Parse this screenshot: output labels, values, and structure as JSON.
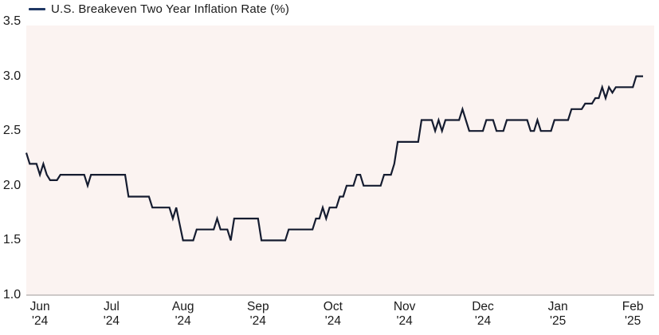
{
  "legend": {
    "label": "U.S. Breakeven Two Year Inflation Rate (%)",
    "dash_color": "#1f3864"
  },
  "colors": {
    "plot_background": "#fbf3f1",
    "line": "#151c30",
    "axis_line": "#bdbab9",
    "text": "#1a1a1a",
    "page_background": "#ffffff"
  },
  "chart_data": {
    "type": "line",
    "title": "U.S. Breakeven Two Year Inflation Rate (%)",
    "xlabel": "",
    "ylabel": "",
    "ylim": [
      1.0,
      3.5
    ],
    "grid": false,
    "legend_position": "top-left",
    "y_ticks": [
      "3.5",
      "3.0",
      "2.5",
      "2.0",
      "1.5",
      "1.0"
    ],
    "y_tick_values": [
      3.5,
      3.0,
      2.5,
      2.0,
      1.5,
      1.0
    ],
    "x_ticks": [
      {
        "month": "Jun",
        "year": "'24",
        "day_index": 4
      },
      {
        "month": "Jul",
        "year": "'24",
        "day_index": 25
      },
      {
        "month": "Aug",
        "year": "'24",
        "day_index": 46
      },
      {
        "month": "Sep",
        "year": "'24",
        "day_index": 68
      },
      {
        "month": "Oct",
        "year": "'24",
        "day_index": 90
      },
      {
        "month": "Nov",
        "year": "'24",
        "day_index": 111
      },
      {
        "month": "Dec",
        "year": "'24",
        "day_index": 134
      },
      {
        "month": "Jan",
        "year": "'25",
        "day_index": 156
      },
      {
        "month": "Feb",
        "year": "'25",
        "day_index": 178
      }
    ],
    "series": [
      {
        "name": "U.S. Breakeven Two Year Inflation Rate (%)",
        "frequency": "daily (business days)",
        "values": [
          2.3,
          2.2,
          2.2,
          2.2,
          2.1,
          2.2,
          2.1,
          2.05,
          2.05,
          2.05,
          2.1,
          2.1,
          2.1,
          2.1,
          2.1,
          2.1,
          2.1,
          2.1,
          2.0,
          2.1,
          2.1,
          2.1,
          2.1,
          2.1,
          2.1,
          2.1,
          2.1,
          2.1,
          2.1,
          2.1,
          1.9,
          1.9,
          1.9,
          1.9,
          1.9,
          1.9,
          1.9,
          1.8,
          1.8,
          1.8,
          1.8,
          1.8,
          1.8,
          1.7,
          1.8,
          1.65,
          1.5,
          1.5,
          1.5,
          1.5,
          1.6,
          1.6,
          1.6,
          1.6,
          1.6,
          1.6,
          1.7,
          1.6,
          1.6,
          1.6,
          1.5,
          1.7,
          1.7,
          1.7,
          1.7,
          1.7,
          1.7,
          1.7,
          1.7,
          1.5,
          1.5,
          1.5,
          1.5,
          1.5,
          1.5,
          1.5,
          1.5,
          1.6,
          1.6,
          1.6,
          1.6,
          1.6,
          1.6,
          1.6,
          1.6,
          1.7,
          1.7,
          1.8,
          1.7,
          1.8,
          1.8,
          1.8,
          1.9,
          1.9,
          2.0,
          2.0,
          2.0,
          2.1,
          2.1,
          2.0,
          2.0,
          2.0,
          2.0,
          2.0,
          2.0,
          2.1,
          2.1,
          2.1,
          2.2,
          2.4,
          2.4,
          2.4,
          2.4,
          2.4,
          2.4,
          2.4,
          2.6,
          2.6,
          2.6,
          2.6,
          2.5,
          2.6,
          2.5,
          2.6,
          2.6,
          2.6,
          2.6,
          2.6,
          2.7,
          2.6,
          2.5,
          2.5,
          2.5,
          2.5,
          2.5,
          2.6,
          2.6,
          2.6,
          2.5,
          2.5,
          2.5,
          2.6,
          2.6,
          2.6,
          2.6,
          2.6,
          2.6,
          2.6,
          2.5,
          2.5,
          2.6,
          2.5,
          2.5,
          2.5,
          2.5,
          2.6,
          2.6,
          2.6,
          2.6,
          2.6,
          2.7,
          2.7,
          2.7,
          2.7,
          2.75,
          2.75,
          2.75,
          2.8,
          2.8,
          2.9,
          2.8,
          2.9,
          2.85,
          2.9,
          2.9,
          2.9,
          2.9,
          2.9,
          2.9,
          3.0,
          3.0,
          3.0
        ]
      }
    ]
  },
  "geometry_note": "plot area left 33, right 821, top 32, bottom 370; line ends at x 807"
}
